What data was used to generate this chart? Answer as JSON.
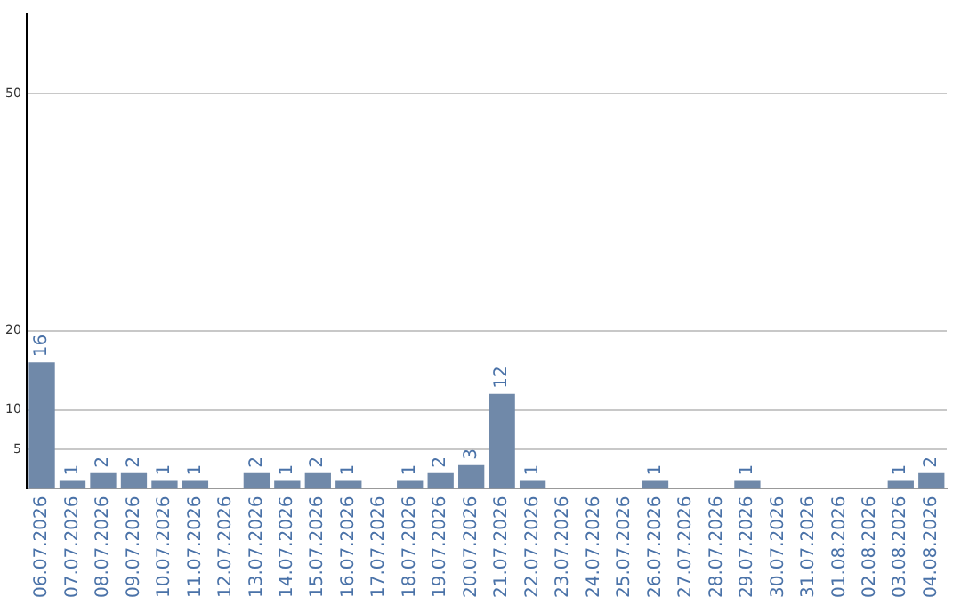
{
  "chart_data": {
    "type": "bar",
    "categories": [
      "06.07.2026",
      "07.07.2026",
      "08.07.2026",
      "09.07.2026",
      "10.07.2026",
      "11.07.2026",
      "12.07.2026",
      "13.07.2026",
      "14.07.2026",
      "15.07.2026",
      "16.07.2026",
      "17.07.2026",
      "18.07.2026",
      "19.07.2026",
      "20.07.2026",
      "21.07.2026",
      "22.07.2026",
      "23.07.2026",
      "24.07.2026",
      "25.07.2026",
      "26.07.2026",
      "27.07.2026",
      "28.07.2026",
      "29.07.2026",
      "30.07.2026",
      "31.07.2026",
      "01.08.2026",
      "02.08.2026",
      "03.08.2026",
      "04.08.2026"
    ],
    "values": [
      16,
      1,
      2,
      2,
      1,
      1,
      0,
      2,
      1,
      2,
      1,
      0,
      1,
      2,
      3,
      12,
      1,
      0,
      0,
      0,
      1,
      0,
      0,
      1,
      0,
      0,
      0,
      0,
      1,
      2
    ],
    "value_labels": [
      "16",
      "1",
      "2",
      "2",
      "1",
      "1",
      null,
      "2",
      "1",
      "2",
      "1",
      null,
      "1",
      "2",
      "3",
      "12",
      "1",
      null,
      null,
      null,
      "1",
      null,
      null,
      "1",
      null,
      null,
      null,
      null,
      "1",
      "2"
    ],
    "color": "#7089a9",
    "ylim": [
      0,
      60
    ],
    "yticks": [
      5,
      10,
      20,
      50
    ],
    "grid": "y",
    "legend": false
  }
}
